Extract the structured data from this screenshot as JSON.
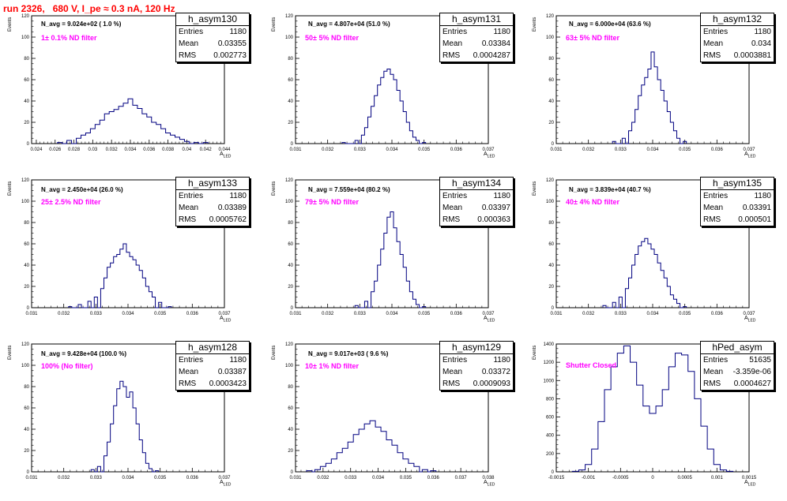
{
  "run_title": "run 2326,   680 V, I_pe ≈ 0.3 nA, 120 Hz",
  "stats_labels": {
    "entries": "Entries",
    "mean": "Mean",
    "rms": "RMS"
  },
  "colors": {
    "line": "#000080",
    "title": "#ff0000",
    "filter": "#ff00ff"
  },
  "chart_data": [
    {
      "type": "bar",
      "name": "h_asym130",
      "navg": "N_avg = 9.024e+02 ( 1.0 %)",
      "filter": "1± 0.1% ND filter",
      "entries": "1180",
      "mean": "0.03355",
      "rms": "0.002773",
      "ylabel": "Events",
      "xlabel": "A_LED",
      "xlim": [
        0.0235,
        0.044
      ],
      "ylim": [
        0,
        120
      ],
      "xticks": [
        "0.024",
        "0.026",
        "0.028",
        "0.03",
        "0.032",
        "0.034",
        "0.036",
        "0.038",
        "0.04",
        "0.042",
        "0.044"
      ],
      "yticks": [
        "0",
        "20",
        "40",
        "60",
        "80",
        "100",
        "120"
      ],
      "x": [
        0.0265,
        0.0275,
        0.0285,
        0.029,
        0.0295,
        0.03,
        0.0305,
        0.031,
        0.0315,
        0.032,
        0.0325,
        0.033,
        0.0335,
        0.034,
        0.0345,
        0.035,
        0.0355,
        0.036,
        0.0365,
        0.037,
        0.0375,
        0.038,
        0.0385,
        0.039,
        0.0395,
        0.04,
        0.041,
        0.042
      ],
      "values": [
        1,
        3,
        5,
        8,
        10,
        14,
        18,
        22,
        28,
        30,
        32,
        35,
        38,
        42,
        36,
        33,
        28,
        25,
        20,
        18,
        14,
        10,
        8,
        6,
        4,
        2,
        1,
        1
      ]
    },
    {
      "type": "bar",
      "name": "h_asym131",
      "navg": "N_avg = 4.807e+04 (51.0 %)",
      "filter": "50± 5% ND filter",
      "entries": "1180",
      "mean": "0.03384",
      "rms": "0.0004287",
      "ylabel": "Events",
      "xlabel": "A_LED",
      "xlim": [
        0.031,
        0.037
      ],
      "ylim": [
        0,
        120
      ],
      "xticks": [
        "0.031",
        "0.032",
        "0.033",
        "0.034",
        "0.035",
        "0.036",
        "0.037"
      ],
      "yticks": [
        "0",
        "20",
        "40",
        "60",
        "80",
        "100",
        "120"
      ],
      "x": [
        0.0325,
        0.0329,
        0.0331,
        0.0332,
        0.0333,
        0.0334,
        0.0335,
        0.0336,
        0.0337,
        0.0338,
        0.0339,
        0.034,
        0.0341,
        0.0342,
        0.0343,
        0.0344,
        0.0345,
        0.0346,
        0.0347,
        0.0348,
        0.035
      ],
      "values": [
        1,
        3,
        8,
        15,
        25,
        35,
        45,
        55,
        62,
        68,
        70,
        65,
        60,
        50,
        40,
        30,
        20,
        12,
        6,
        3,
        1
      ]
    },
    {
      "type": "bar",
      "name": "h_asym132",
      "navg": "N_avg = 6.000e+04 (63.6 %)",
      "filter": "63± 5% ND filter",
      "entries": "1180",
      "mean": "0.034",
      "rms": "0.0003881",
      "ylabel": "Events",
      "xlabel": "A_LED",
      "xlim": [
        0.031,
        0.037
      ],
      "ylim": [
        0,
        120
      ],
      "xticks": [
        "0.031",
        "0.032",
        "0.033",
        "0.034",
        "0.035",
        "0.036",
        "0.037"
      ],
      "yticks": [
        "0",
        "20",
        "40",
        "60",
        "80",
        "100",
        "120"
      ],
      "x": [
        0.0328,
        0.0331,
        0.0333,
        0.0334,
        0.0335,
        0.0336,
        0.0337,
        0.0338,
        0.0339,
        0.034,
        0.0341,
        0.0342,
        0.0343,
        0.0344,
        0.0345,
        0.0346,
        0.0347,
        0.0348,
        0.035
      ],
      "values": [
        2,
        5,
        12,
        20,
        32,
        45,
        55,
        62,
        70,
        86,
        72,
        60,
        50,
        40,
        30,
        20,
        12,
        5,
        2
      ]
    },
    {
      "type": "bar",
      "name": "h_asym133",
      "navg": "N_avg = 2.450e+04 (26.0 %)",
      "filter": "25± 2.5% ND filter",
      "entries": "1180",
      "mean": "0.03389",
      "rms": "0.0005762",
      "ylabel": "Events",
      "xlabel": "A_LED",
      "xlim": [
        0.031,
        0.037
      ],
      "ylim": [
        0,
        120
      ],
      "xticks": [
        "0.031",
        "0.032",
        "0.033",
        "0.034",
        "0.035",
        "0.036",
        "0.037"
      ],
      "yticks": [
        "0",
        "20",
        "40",
        "60",
        "80",
        "100",
        "120"
      ],
      "x": [
        0.0322,
        0.0325,
        0.0328,
        0.033,
        0.0332,
        0.0333,
        0.0334,
        0.0335,
        0.0336,
        0.0337,
        0.0338,
        0.0339,
        0.034,
        0.0341,
        0.0342,
        0.0343,
        0.0344,
        0.0345,
        0.0346,
        0.0347,
        0.0348,
        0.035,
        0.0353
      ],
      "values": [
        1,
        3,
        6,
        10,
        18,
        28,
        38,
        42,
        48,
        50,
        55,
        60,
        52,
        48,
        45,
        40,
        35,
        28,
        20,
        15,
        10,
        5,
        1
      ]
    },
    {
      "type": "bar",
      "name": "h_asym134",
      "navg": "N_avg = 7.559e+04 (80.2 %)",
      "filter": "79± 5% ND filter",
      "entries": "1180",
      "mean": "0.03397",
      "rms": "0.000363",
      "ylabel": "Events",
      "xlabel": "A_LED",
      "xlim": [
        0.031,
        0.037
      ],
      "ylim": [
        0,
        120
      ],
      "xticks": [
        "0.031",
        "0.032",
        "0.033",
        "0.034",
        "0.035",
        "0.036",
        "0.037"
      ],
      "yticks": [
        "0",
        "20",
        "40",
        "60",
        "80",
        "100",
        "120"
      ],
      "x": [
        0.0329,
        0.0332,
        0.0334,
        0.0335,
        0.0336,
        0.0337,
        0.0338,
        0.0339,
        0.034,
        0.0341,
        0.0342,
        0.0343,
        0.0344,
        0.0345,
        0.0346,
        0.0347,
        0.0348,
        0.035
      ],
      "values": [
        2,
        6,
        15,
        25,
        40,
        55,
        70,
        85,
        90,
        75,
        62,
        50,
        38,
        25,
        15,
        8,
        3,
        1
      ]
    },
    {
      "type": "bar",
      "name": "h_asym135",
      "navg": "N_avg = 3.839e+04 (40.7 %)",
      "filter": "40± 4% ND filter",
      "entries": "1180",
      "mean": "0.03391",
      "rms": "0.000501",
      "ylabel": "Events",
      "xlabel": "A_LED",
      "xlim": [
        0.031,
        0.037
      ],
      "ylim": [
        0,
        120
      ],
      "xticks": [
        "0.031",
        "0.032",
        "0.033",
        "0.034",
        "0.035",
        "0.036",
        "0.037"
      ],
      "yticks": [
        "0",
        "20",
        "40",
        "60",
        "80",
        "100",
        "120"
      ],
      "x": [
        0.0325,
        0.0328,
        0.033,
        0.0332,
        0.0333,
        0.0334,
        0.0335,
        0.0336,
        0.0337,
        0.0338,
        0.0339,
        0.034,
        0.0341,
        0.0342,
        0.0343,
        0.0344,
        0.0345,
        0.0346,
        0.0347,
        0.0348,
        0.035
      ],
      "values": [
        2,
        5,
        10,
        18,
        28,
        40,
        50,
        58,
        62,
        65,
        60,
        55,
        50,
        42,
        35,
        28,
        20,
        12,
        8,
        4,
        1
      ]
    },
    {
      "type": "bar",
      "name": "h_asym128",
      "navg": "N_avg = 9.428e+04 (100.0 %)",
      "filter": "100% (No filter)",
      "entries": "1180",
      "mean": "0.03387",
      "rms": "0.0003423",
      "ylabel": "Events",
      "xlabel": "A_LED",
      "xlim": [
        0.031,
        0.037
      ],
      "ylim": [
        0,
        120
      ],
      "xticks": [
        "0.031",
        "0.032",
        "0.033",
        "0.034",
        "0.035",
        "0.036",
        "0.037"
      ],
      "yticks": [
        "0",
        "20",
        "40",
        "60",
        "80",
        "100",
        "120"
      ],
      "x": [
        0.0329,
        0.0331,
        0.0333,
        0.0334,
        0.0335,
        0.0336,
        0.0337,
        0.0338,
        0.0339,
        0.034,
        0.0341,
        0.0342,
        0.0343,
        0.0344,
        0.0345,
        0.0346,
        0.0347,
        0.0349
      ],
      "values": [
        2,
        5,
        15,
        28,
        45,
        62,
        78,
        85,
        80,
        70,
        75,
        60,
        45,
        30,
        18,
        8,
        3,
        1
      ]
    },
    {
      "type": "bar",
      "name": "h_asym129",
      "navg": "N_avg = 9.017e+03 ( 9.6 %)",
      "filter": "10± 1% ND filter",
      "entries": "1180",
      "mean": "0.03372",
      "rms": "0.0009093",
      "ylabel": "Events",
      "xlabel": "A_LED",
      "xlim": [
        0.031,
        0.038
      ],
      "ylim": [
        0,
        120
      ],
      "xticks": [
        "0.031",
        "0.032",
        "0.033",
        "0.034",
        "0.035",
        "0.036",
        "0.037",
        "0.038"
      ],
      "yticks": [
        "0",
        "20",
        "40",
        "60",
        "80",
        "100",
        "120"
      ],
      "x": [
        0.0315,
        0.0318,
        0.032,
        0.0322,
        0.0324,
        0.0326,
        0.0328,
        0.033,
        0.0332,
        0.0334,
        0.0336,
        0.0338,
        0.034,
        0.0342,
        0.0344,
        0.0346,
        0.0348,
        0.035,
        0.0352,
        0.0354,
        0.0357,
        0.036
      ],
      "values": [
        1,
        2,
        5,
        8,
        12,
        18,
        22,
        28,
        35,
        40,
        45,
        48,
        42,
        38,
        30,
        25,
        18,
        12,
        8,
        5,
        2,
        1
      ]
    },
    {
      "type": "bar",
      "name": "hPed_asym",
      "navg": "",
      "filter": "Shutter Closed",
      "entries": "51635",
      "mean": "-3.359e-06",
      "rms": "0.0004627",
      "ylabel": "Events",
      "xlabel": "A_LED",
      "xlim": [
        -0.0015,
        0.0015
      ],
      "ylim": [
        0,
        1400
      ],
      "xticks": [
        "-0.0015",
        "-0.001",
        "-0.0005",
        "0",
        "0.0005",
        "0.001",
        "0.0015"
      ],
      "yticks": [
        "0",
        "200",
        "400",
        "600",
        "800",
        "1000",
        "1200",
        "1400"
      ],
      "x": [
        -0.0012,
        -0.0011,
        -0.001,
        -0.0009,
        -0.0008,
        -0.0007,
        -0.0006,
        -0.0005,
        -0.0004,
        -0.0003,
        -0.0002,
        -0.0001,
        0,
        0.0001,
        0.0002,
        0.0003,
        0.0004,
        0.0005,
        0.0006,
        0.0007,
        0.0008,
        0.0009,
        0.001,
        0.0011,
        0.0012
      ],
      "values": [
        5,
        20,
        80,
        250,
        550,
        900,
        1150,
        1300,
        1380,
        1200,
        950,
        720,
        640,
        720,
        900,
        1150,
        1300,
        1280,
        1100,
        800,
        500,
        250,
        80,
        20,
        5
      ]
    }
  ]
}
